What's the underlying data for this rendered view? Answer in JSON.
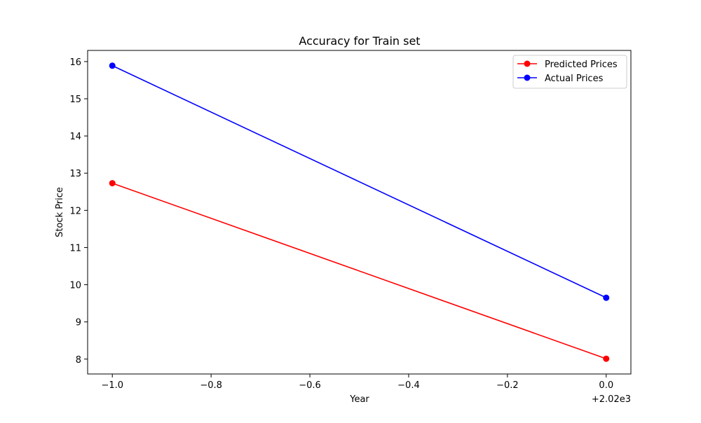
{
  "chart_data": {
    "type": "line",
    "title": "Accuracy for Train set",
    "xlabel": "Year",
    "ylabel": "Stock Price",
    "x_offset_label": "+2.02e3",
    "xlim": [
      2018.95,
      2020.05
    ],
    "ylim": [
      7.6,
      16.3
    ],
    "xticks": [
      2019.0,
      2019.2,
      2019.4,
      2019.6,
      2019.8,
      2020.0
    ],
    "xtick_labels": [
      "−1.0",
      "−0.8",
      "−0.6",
      "−0.4",
      "−0.2",
      "0.0"
    ],
    "yticks": [
      8,
      9,
      10,
      11,
      12,
      13,
      14,
      15,
      16
    ],
    "ytick_labels": [
      "8",
      "9",
      "10",
      "11",
      "12",
      "13",
      "14",
      "15",
      "16"
    ],
    "x": [
      2019,
      2020
    ],
    "series": [
      {
        "name": "Predicted Prices",
        "color": "#ff0000",
        "values": [
          12.73,
          8.01
        ]
      },
      {
        "name": "Actual Prices",
        "color": "#0000ff",
        "values": [
          15.89,
          9.65
        ]
      }
    ],
    "legend": "top-right",
    "grid": false,
    "marker": "circle"
  }
}
